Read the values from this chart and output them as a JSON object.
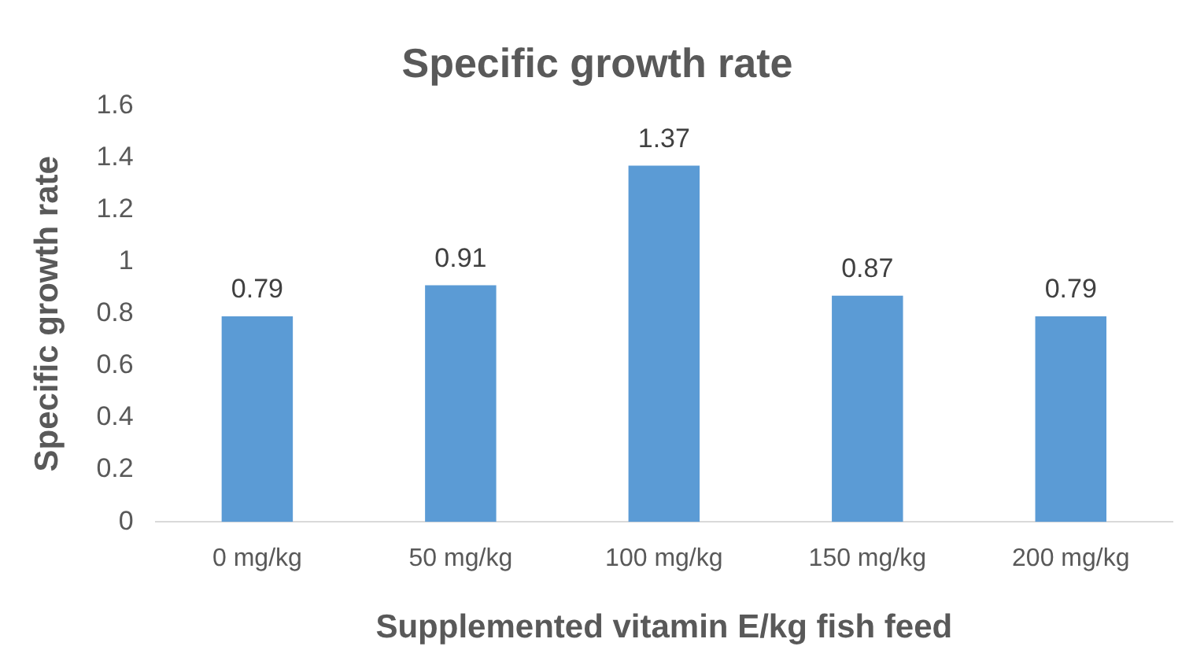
{
  "chart_data": {
    "type": "bar",
    "title": "Specific growth rate",
    "xlabel": "Supplemented vitamin E/kg fish feed",
    "ylabel": "Specific growth rate",
    "categories": [
      "0 mg/kg",
      "50 mg/kg",
      "100 mg/kg",
      "150 mg/kg",
      "200 mg/kg"
    ],
    "values": [
      0.79,
      0.91,
      1.37,
      0.87,
      0.79
    ],
    "color": "#5b9bd5",
    "ylim": [
      0,
      1.6
    ],
    "yticks": [
      0,
      0.2,
      0.4,
      0.6,
      0.8,
      1,
      1.2,
      1.4,
      1.6
    ],
    "grid": false,
    "legend": false,
    "data_labels": true
  }
}
